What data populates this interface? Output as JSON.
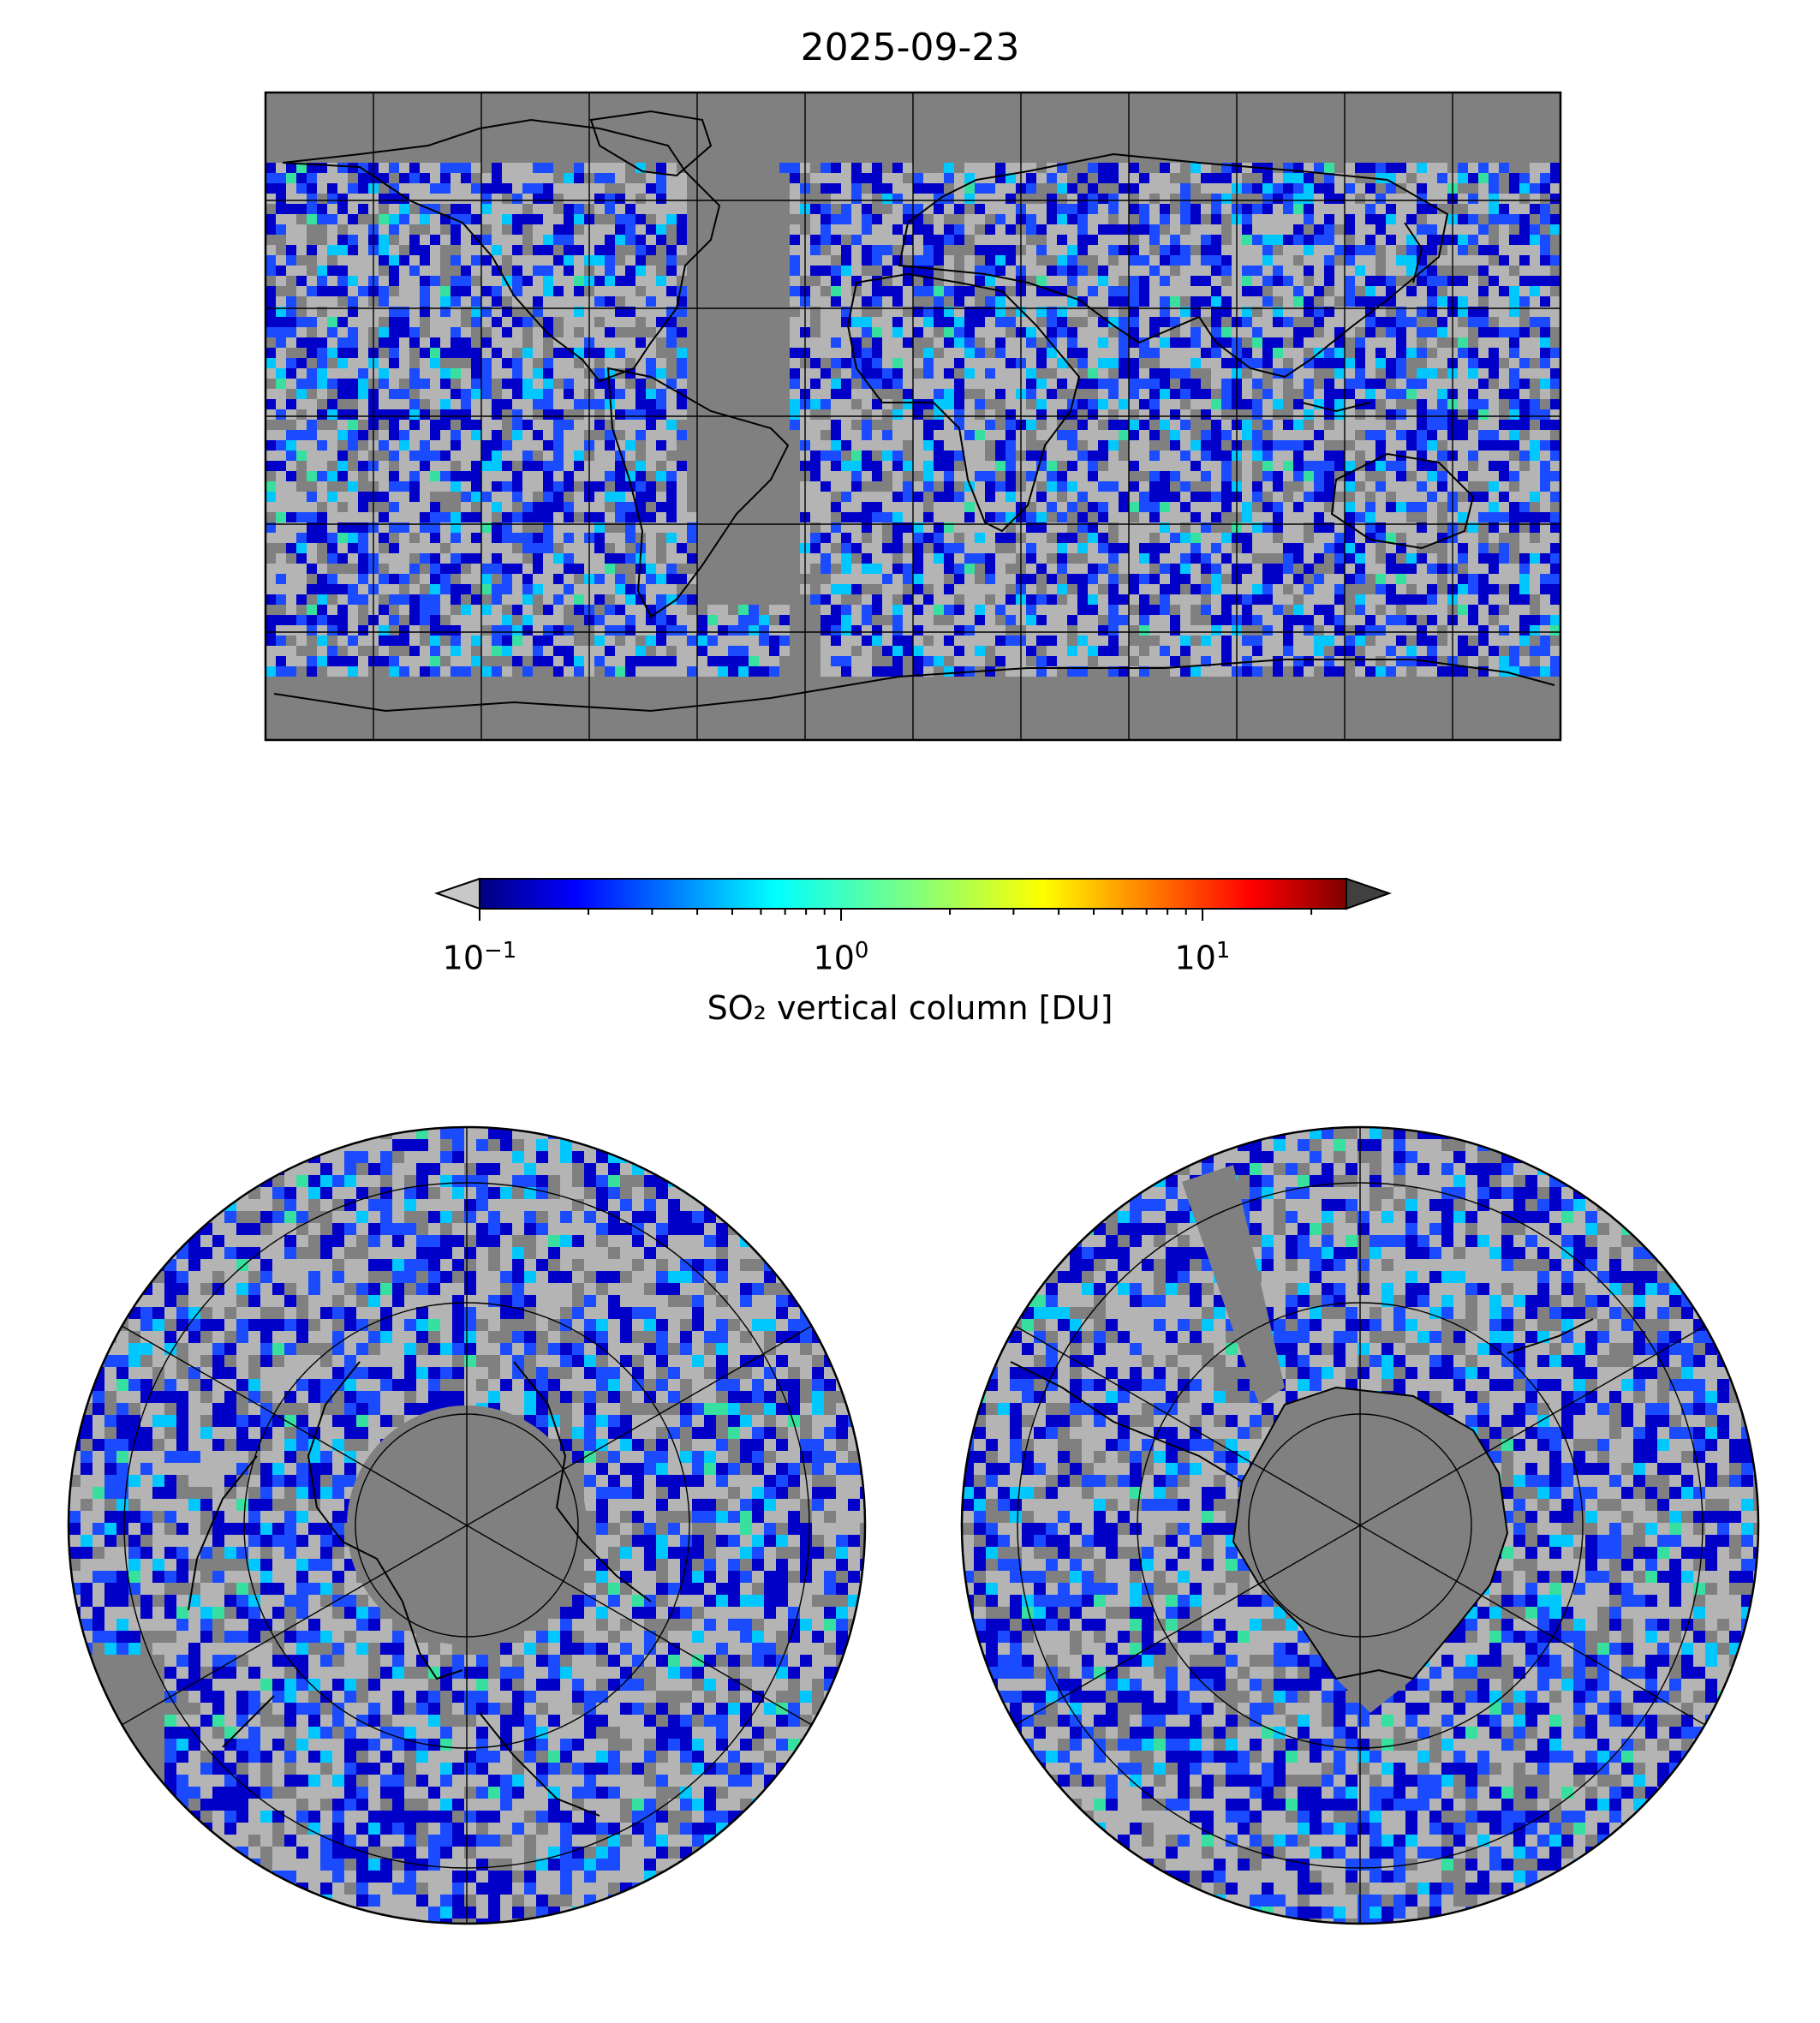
{
  "title": "2025-09-23",
  "colorbar": {
    "label": "SO₂ vertical column [DU]",
    "scale": "log",
    "range": [
      0.1,
      25
    ],
    "ticks": [
      {
        "base": "10",
        "exp": "−1",
        "value": 0.1
      },
      {
        "base": "10",
        "exp": "0",
        "value": 1
      },
      {
        "base": "10",
        "exp": "1",
        "value": 10
      }
    ],
    "colormap": "jet",
    "under_color": "#c8c8c8",
    "over_color": "#404040"
  },
  "map_colors": {
    "nodata": "#808080",
    "low": "#b4b4b4",
    "dark_blue": "#0000c8",
    "blue": "#1a4bff",
    "cyan": "#00c8ff",
    "green": "#38e0a0"
  },
  "panels": [
    {
      "name": "global-map",
      "projection": "plate-carree"
    },
    {
      "name": "north-polar-map",
      "projection": "north-polar-stereographic"
    },
    {
      "name": "south-polar-map",
      "projection": "south-polar-stereographic"
    }
  ]
}
